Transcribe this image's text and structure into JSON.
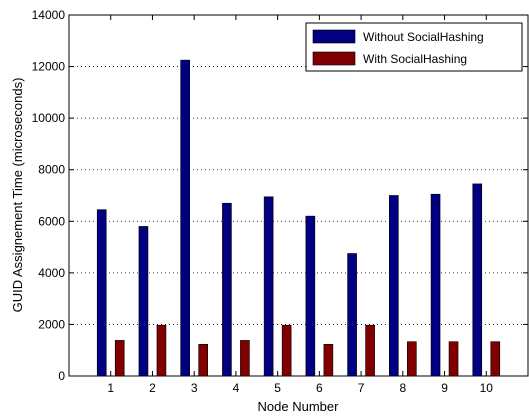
{
  "chart_data": {
    "type": "bar",
    "xlabel": "Node Number",
    "ylabel": "GUID Assignement Time (microseconds)",
    "categories": [
      "1",
      "2",
      "3",
      "4",
      "5",
      "6",
      "7",
      "8",
      "9",
      "10"
    ],
    "xlim": [
      0,
      11
    ],
    "ylim": [
      0,
      14000
    ],
    "yticks": [
      0,
      2000,
      4000,
      6000,
      8000,
      10000,
      12000,
      14000
    ],
    "grid": "y-dotted",
    "legend_position": "top-right",
    "series": [
      {
        "name": "Without SocialHashing",
        "color": "#000080",
        "values": [
          6450,
          5800,
          12250,
          6700,
          6950,
          6200,
          4750,
          7000,
          7050,
          7450
        ]
      },
      {
        "name": "With SocialHashing",
        "color": "#800000",
        "values": [
          1380,
          1970,
          1230,
          1380,
          1970,
          1230,
          1970,
          1330,
          1330,
          1330
        ]
      }
    ]
  }
}
